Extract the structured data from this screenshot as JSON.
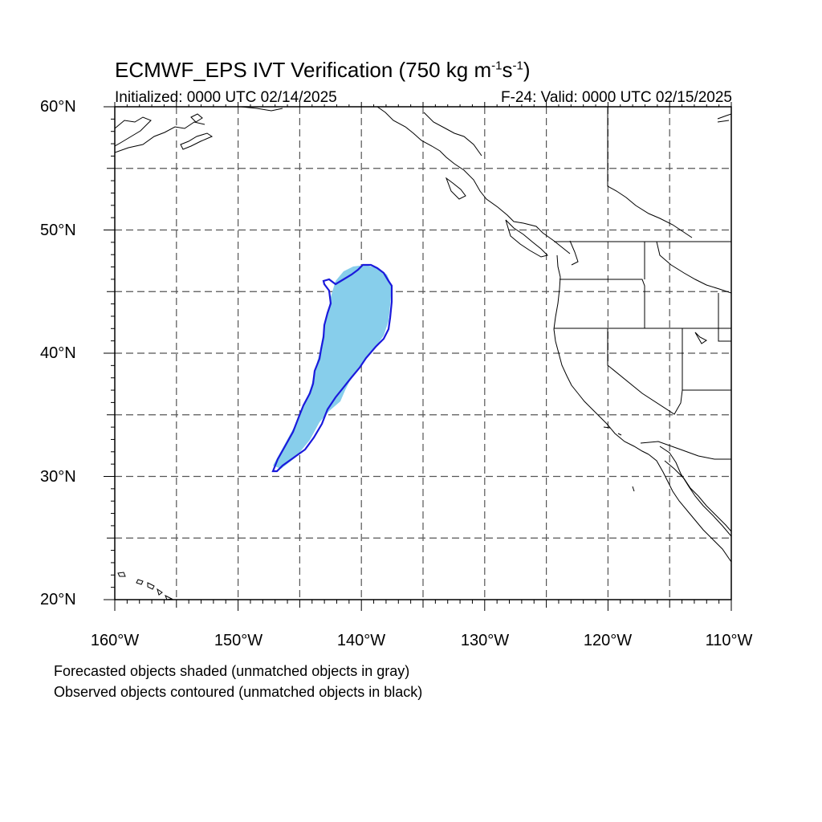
{
  "title": {
    "main": "ECMWF_EPS IVT Verification (750 kg m",
    "exp1": "-1",
    "mid": "s",
    "exp2": "-1",
    "end": ")"
  },
  "subtitle": {
    "initialized": "Initialized: 0000 UTC 02/14/2025",
    "valid": "F-24: Valid: 0000 UTC 02/15/2025"
  },
  "axes": {
    "lat_labels": [
      "60°N",
      "50°N",
      "40°N",
      "30°N",
      "20°N"
    ],
    "lon_labels": [
      "160°W",
      "150°W",
      "140°W",
      "130°W",
      "120°W",
      "110°W"
    ],
    "lat_range": [
      20,
      60
    ],
    "lon_range": [
      -160,
      -110
    ],
    "grid": "dashed every 5 degrees"
  },
  "legend_notes": [
    "Forecasted objects shaded (unmatched objects in gray)",
    "Observed objects contoured (unmatched objects in black)"
  ],
  "colors": {
    "forecast_fill": "#87ceeb",
    "observed_contour": "#1a1adc",
    "coastline": "#000000",
    "grid": "#555555"
  },
  "objects": [
    {
      "type": "forecast",
      "matched": true,
      "lat_extent": [
        30.5,
        47.2
      ],
      "lon_extent": [
        -147,
        -137.5
      ]
    },
    {
      "type": "observed",
      "matched": true,
      "lat_extent": [
        30.3,
        47.2
      ],
      "lon_extent": [
        -147.2,
        -137.5
      ]
    }
  ]
}
